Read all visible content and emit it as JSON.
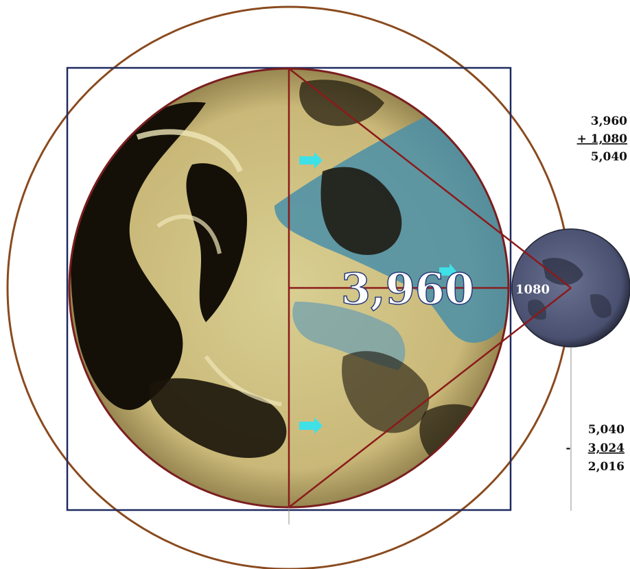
{
  "diagram": {
    "earth_label": "3,960",
    "moon_label": "1080",
    "addition": {
      "top": "3,960",
      "addend": "+ 1,080",
      "result": "5,040"
    },
    "subtraction": {
      "top": "5,040",
      "operator": "-",
      "subtrahend": "3,024",
      "result": "2,016"
    }
  },
  "colors": {
    "outer_circle": "#8a4a1e",
    "square": "#1e2a60",
    "red_lines": "#8b1a1a",
    "earth_land": "#d9cc8c",
    "earth_ocean": "#4a8fa8",
    "earth_dark": "#141008",
    "moon": "#5d6480",
    "arrow": "#3fe0e6",
    "math_text": "#111111"
  },
  "icons": [
    "cyan-arrow-icon"
  ]
}
